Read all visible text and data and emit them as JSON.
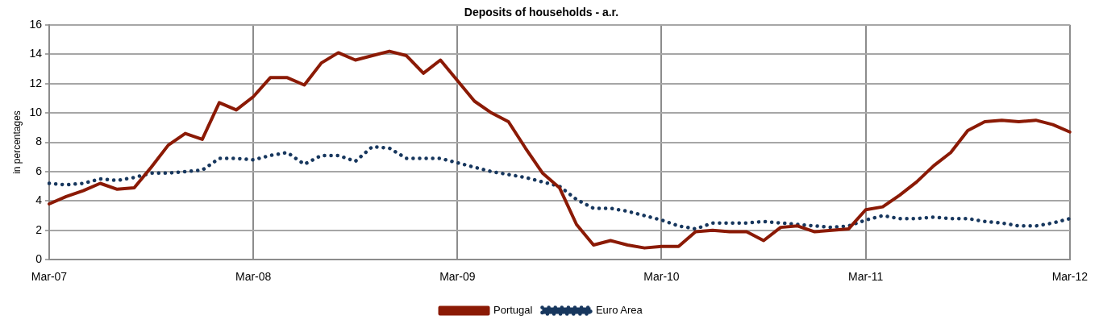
{
  "chart_data": {
    "type": "line",
    "title": "Deposits of households - a.r.",
    "ylabel": "in percentages",
    "categories": [
      "Mar-07",
      null,
      null,
      null,
      null,
      null,
      null,
      null,
      null,
      null,
      null,
      null,
      "Mar-08",
      null,
      null,
      null,
      null,
      null,
      null,
      null,
      null,
      null,
      null,
      null,
      "Mar-09",
      null,
      null,
      null,
      null,
      null,
      null,
      null,
      null,
      null,
      null,
      null,
      "Mar-10",
      null,
      null,
      null,
      null,
      null,
      null,
      null,
      null,
      null,
      null,
      null,
      "Mar-11",
      null,
      null,
      null,
      null,
      null,
      null,
      null,
      null,
      null,
      null,
      null,
      "Mar-12"
    ],
    "series": [
      {
        "name": "Portugal",
        "color": "#8b1a05",
        "line_style": "solid",
        "values": [
          3.8,
          4.3,
          4.7,
          5.2,
          4.8,
          4.9,
          6.3,
          7.8,
          8.6,
          8.2,
          10.7,
          10.2,
          11.1,
          12.4,
          12.4,
          11.9,
          13.4,
          14.1,
          13.6,
          13.9,
          14.2,
          13.9,
          12.7,
          13.6,
          12.2,
          10.8,
          10.0,
          9.4,
          7.6,
          5.9,
          4.9,
          2.4,
          1.0,
          1.3,
          1.0,
          0.8,
          0.9,
          0.9,
          1.9,
          2.0,
          1.9,
          1.9,
          1.3,
          2.2,
          2.3,
          1.9,
          2.0,
          2.1,
          3.4,
          3.6,
          4.4,
          5.3,
          6.4,
          7.3,
          8.8,
          9.4,
          9.5,
          9.4,
          9.5,
          9.2,
          8.7
        ]
      },
      {
        "name": "Euro Area",
        "color": "#17375e",
        "line_style": "dotted",
        "values": [
          5.2,
          5.1,
          5.2,
          5.5,
          5.4,
          5.6,
          5.9,
          5.9,
          6.0,
          6.1,
          6.9,
          6.9,
          6.8,
          7.1,
          7.3,
          6.5,
          7.1,
          7.1,
          6.7,
          7.7,
          7.6,
          6.9,
          6.9,
          6.9,
          6.6,
          6.3,
          6.0,
          5.8,
          5.6,
          5.3,
          5.0,
          4.1,
          3.5,
          3.5,
          3.3,
          3.0,
          2.7,
          2.3,
          2.1,
          2.5,
          2.5,
          2.5,
          2.6,
          2.5,
          2.4,
          2.3,
          2.2,
          2.3,
          2.7,
          3.0,
          2.8,
          2.8,
          2.9,
          2.8,
          2.8,
          2.6,
          2.5,
          2.3,
          2.3,
          2.5,
          2.8
        ]
      }
    ],
    "ylim": [
      0,
      16
    ],
    "yticks": [
      0,
      2,
      4,
      6,
      8,
      10,
      12,
      14,
      16
    ],
    "grid": true,
    "legend": "bottom",
    "marker": "none"
  }
}
